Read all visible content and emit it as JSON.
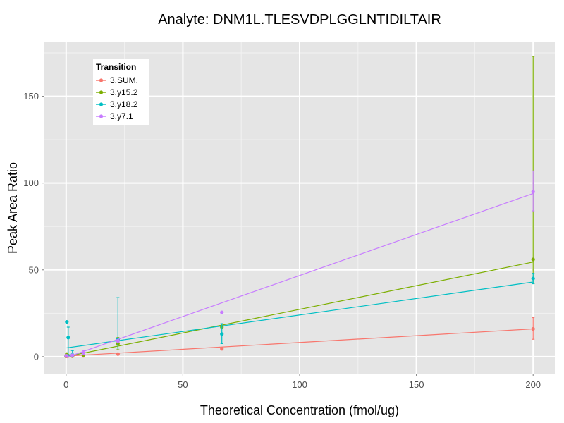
{
  "chart_data": {
    "type": "scatter",
    "title": "Analyte: DNM1L.TLESVDPLGGLNTIDILTAIR",
    "xlabel": "Theoretical Concentration (fmol/ug)",
    "ylabel": "Peak Area Ratio",
    "xlim": [
      -9.3,
      209.3
    ],
    "ylim": [
      -9.8,
      181.1
    ],
    "xticks": [
      0,
      50,
      100,
      150,
      200
    ],
    "yticks": [
      0,
      50,
      100,
      150
    ],
    "xtick_labels": [
      "0",
      "50",
      "100",
      "150",
      "200"
    ],
    "ytick_labels": [
      "0",
      "50",
      "100",
      "150"
    ],
    "grid": true,
    "background": "#e5e5e5",
    "legend": {
      "title": "Transition",
      "position": "top-left"
    },
    "series": [
      {
        "name": "3.SUM.",
        "color": "#f8766d",
        "fit": [
          0.3,
          16.0
        ],
        "points": [
          {
            "x": 0,
            "y": 0.2
          },
          {
            "x": 0.3,
            "y": 0.2
          },
          {
            "x": 0.9,
            "y": 0.5
          },
          {
            "x": 2.7,
            "y": 0.3
          },
          {
            "x": 7.4,
            "y": 0.5
          },
          {
            "x": 22.2,
            "y": 1.5
          },
          {
            "x": 66.7,
            "y": 4.5
          },
          {
            "x": 200,
            "y": 16.0,
            "err": [
              10.0,
              22.5
            ]
          }
        ]
      },
      {
        "name": "3.y15.2",
        "color": "#7cae00",
        "fit": [
          0,
          54.5
        ],
        "points": [
          {
            "x": 0,
            "y": 0.3
          },
          {
            "x": 0.3,
            "y": 1.5
          },
          {
            "x": 0.9,
            "y": 0.5
          },
          {
            "x": 2.7,
            "y": 0.4
          },
          {
            "x": 7.4,
            "y": 1.0
          },
          {
            "x": 22.2,
            "y": 7.5,
            "err": [
              4.0,
              11.0
            ]
          },
          {
            "x": 66.7,
            "y": 17.0
          },
          {
            "x": 200,
            "y": 56.0,
            "err": [
              42.0,
              173.0
            ]
          }
        ]
      },
      {
        "name": "3.y18.2",
        "color": "#00bfc4",
        "fit": [
          5.0,
          43.0
        ],
        "points": [
          {
            "x": 0.3,
            "y": 20.0
          },
          {
            "x": 0.9,
            "y": 11.0,
            "err": [
              0.5,
              17.0
            ]
          },
          {
            "x": 2.7,
            "y": 1.0,
            "err": [
              0.0,
              3.5
            ]
          },
          {
            "x": 22.2,
            "y": 10.0,
            "err": [
              5.0,
              34.0
            ]
          },
          {
            "x": 66.7,
            "y": 13.0,
            "err": [
              7.5,
              19.0
            ]
          },
          {
            "x": 200,
            "y": 45.0,
            "err": [
              42.0,
              48.0
            ]
          }
        ]
      },
      {
        "name": "3.y7.1",
        "color": "#c77cff",
        "fit": [
          -0.5,
          94.0
        ],
        "points": [
          {
            "x": 0,
            "y": 0.5
          },
          {
            "x": 0.3,
            "y": 0.4
          },
          {
            "x": 2.7,
            "y": 0.8
          },
          {
            "x": 7.4,
            "y": 2.0,
            "err": [
              1.0,
              3.5
            ]
          },
          {
            "x": 22.2,
            "y": 9.0
          },
          {
            "x": 66.7,
            "y": 25.5
          },
          {
            "x": 200,
            "y": 95.0,
            "err": [
              84.0,
              107.0
            ]
          }
        ]
      }
    ]
  }
}
